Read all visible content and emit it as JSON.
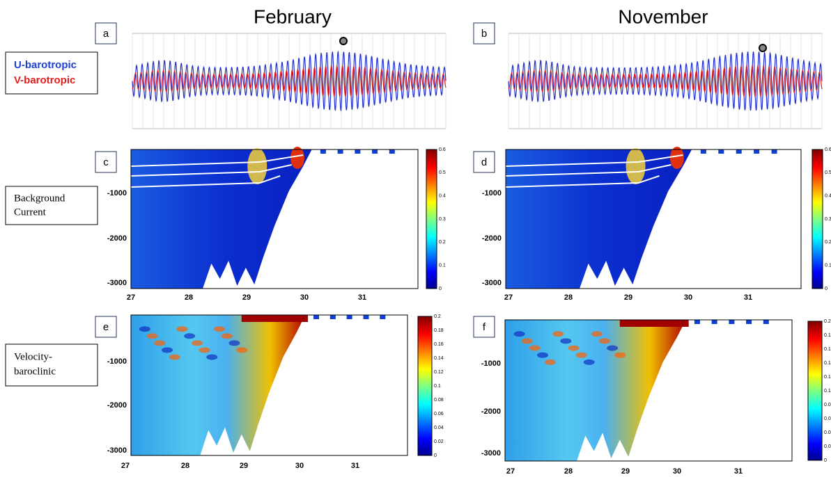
{
  "column_titles": [
    "February",
    "November"
  ],
  "row_labels": {
    "barotropic": [
      "U-barotropic",
      "V-barotropic"
    ],
    "background": [
      "Background",
      "Current"
    ],
    "baroclinic": [
      "Velocity-",
      "baroclinic"
    ]
  },
  "panels": [
    {
      "letter": "a"
    },
    {
      "letter": "b"
    },
    {
      "letter": "c",
      "yticks": [
        -1000,
        -2000,
        -3000
      ],
      "xticks": [
        27,
        28,
        29,
        30,
        31
      ],
      "colorbar": [
        0,
        0.1,
        0.2,
        0.3,
        0.4,
        0.5,
        0.6
      ]
    },
    {
      "letter": "d",
      "yticks": [
        -1000,
        -2000,
        -3000
      ],
      "xticks": [
        27,
        28,
        29,
        30,
        31
      ],
      "colorbar": [
        0,
        0.1,
        0.2,
        0.3,
        0.4,
        0.5,
        0.6
      ]
    },
    {
      "letter": "e",
      "yticks": [
        -1000,
        -2000,
        -3000
      ],
      "xticks": [
        27,
        28,
        29,
        30,
        31
      ],
      "colorbar": [
        0,
        0.02,
        0.04,
        0.06,
        0.08,
        0.1,
        0.12,
        0.14,
        0.16,
        0.18,
        0.2
      ]
    },
    {
      "letter": "f",
      "yticks": [
        -1000,
        -2000,
        -3000
      ],
      "xticks": [
        27,
        28,
        29,
        30,
        31
      ],
      "colorbar": [
        0,
        0.02,
        0.04,
        0.06,
        0.08,
        0.1,
        0.12,
        0.14,
        0.16,
        0.18,
        0.2
      ]
    }
  ]
}
